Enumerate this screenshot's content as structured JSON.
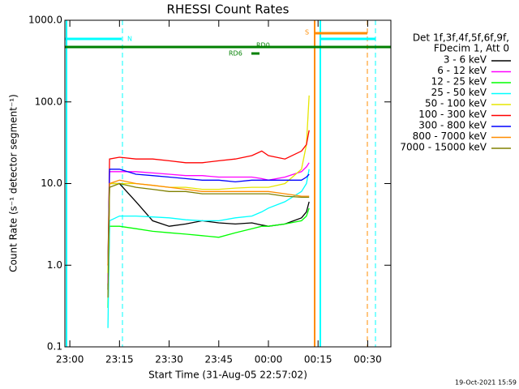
{
  "chart_data": {
    "type": "line",
    "title": "RHESSI Count Rates",
    "x_label": "Start Time (31-Aug-05 22:57:02)",
    "y_label": "Count Rate (s⁻¹ detector segment⁻¹)",
    "legend_title": [
      "Det 1f,3f,4f,5f,6f,9f,",
      "FDecim 1, Att 0"
    ],
    "timestamp": "19-Oct-2021 15:59",
    "annotations": [
      "N",
      "S",
      "RD0",
      "RD6"
    ],
    "log_y": true,
    "legend": "right",
    "xlim": [
      -1.5,
      97
    ],
    "xticks": [
      {
        "value": 0,
        "label": "23:00"
      },
      {
        "value": 15,
        "label": "23:15"
      },
      {
        "value": 30,
        "label": "23:30"
      },
      {
        "value": 45,
        "label": "23:45"
      },
      {
        "value": 60,
        "label": "00:00"
      },
      {
        "value": 75,
        "label": "00:15"
      },
      {
        "value": 90,
        "label": "00:30"
      }
    ],
    "ylim": [
      0.1,
      1000
    ],
    "yticks": [
      0.1,
      {
        "value": 1,
        "label": "1.0"
      },
      {
        "value": 10,
        "label": "10.0"
      },
      {
        "value": 100,
        "label": "100.0"
      },
      {
        "value": 1000,
        "label": "1000.0"
      }
    ],
    "x": [
      11.5,
      12,
      15,
      20,
      25,
      30,
      35,
      40,
      45,
      50,
      55,
      58,
      60,
      65,
      70,
      71.5,
      72.3
    ],
    "series": [
      {
        "name": "3 - 6 keV",
        "color": "#000000",
        "values": [
          0.5,
          10,
          10,
          6,
          3.5,
          3,
          3.2,
          3.5,
          3.3,
          3.2,
          3.3,
          3.1,
          3,
          3.2,
          3.8,
          4.5,
          6
        ]
      },
      {
        "name": "6 - 12 keV",
        "color": "#ff00ff",
        "values": [
          0.6,
          14,
          14,
          14,
          13.5,
          13,
          12.5,
          12.5,
          12,
          12,
          12,
          11.5,
          11,
          12,
          14,
          16,
          18
        ]
      },
      {
        "name": "12 - 25 keV",
        "color": "#00ff00",
        "values": [
          0.3,
          3,
          3,
          2.8,
          2.6,
          2.5,
          2.4,
          2.3,
          2.2,
          2.5,
          2.8,
          3,
          3,
          3.2,
          3.5,
          4,
          5
        ]
      },
      {
        "name": "25 - 50 keV",
        "color": "#00ffff",
        "values": [
          0.17,
          3.5,
          4,
          4,
          3.9,
          3.8,
          3.6,
          3.5,
          3.5,
          3.8,
          4,
          4.5,
          5,
          6,
          8,
          10,
          15
        ]
      },
      {
        "name": "50 - 100 keV",
        "color": "#e6e600",
        "values": [
          0.8,
          10,
          10,
          10,
          9.5,
          9,
          9,
          8.5,
          8.5,
          8.8,
          9,
          9,
          9,
          10,
          15,
          30,
          120
        ]
      },
      {
        "name": "100 - 300 keV",
        "color": "#ff0000",
        "values": [
          1,
          20,
          21,
          20,
          20,
          19,
          18,
          18,
          19,
          20,
          22,
          25,
          22,
          20,
          25,
          30,
          45
        ]
      },
      {
        "name": "300 - 800 keV",
        "color": "#0000ff",
        "values": [
          1,
          15,
          15,
          13,
          12.5,
          12,
          11.5,
          11,
          11,
          10.5,
          11,
          11,
          11,
          11,
          11,
          12,
          13
        ]
      },
      {
        "name": "800 - 7000 keV",
        "color": "#ff8c00",
        "values": [
          1,
          10,
          11,
          10,
          9.5,
          9,
          8.5,
          8,
          8,
          8,
          8,
          8,
          8,
          7.5,
          7,
          7,
          7
        ]
      },
      {
        "name": "7000 - 15000 keV",
        "color": "#808000",
        "values": [
          0.4,
          9,
          10,
          9,
          8.5,
          8,
          8,
          7.5,
          7.5,
          7.5,
          7.5,
          7.5,
          7.5,
          7,
          6.8,
          6.8,
          6.8
        ]
      }
    ]
  }
}
